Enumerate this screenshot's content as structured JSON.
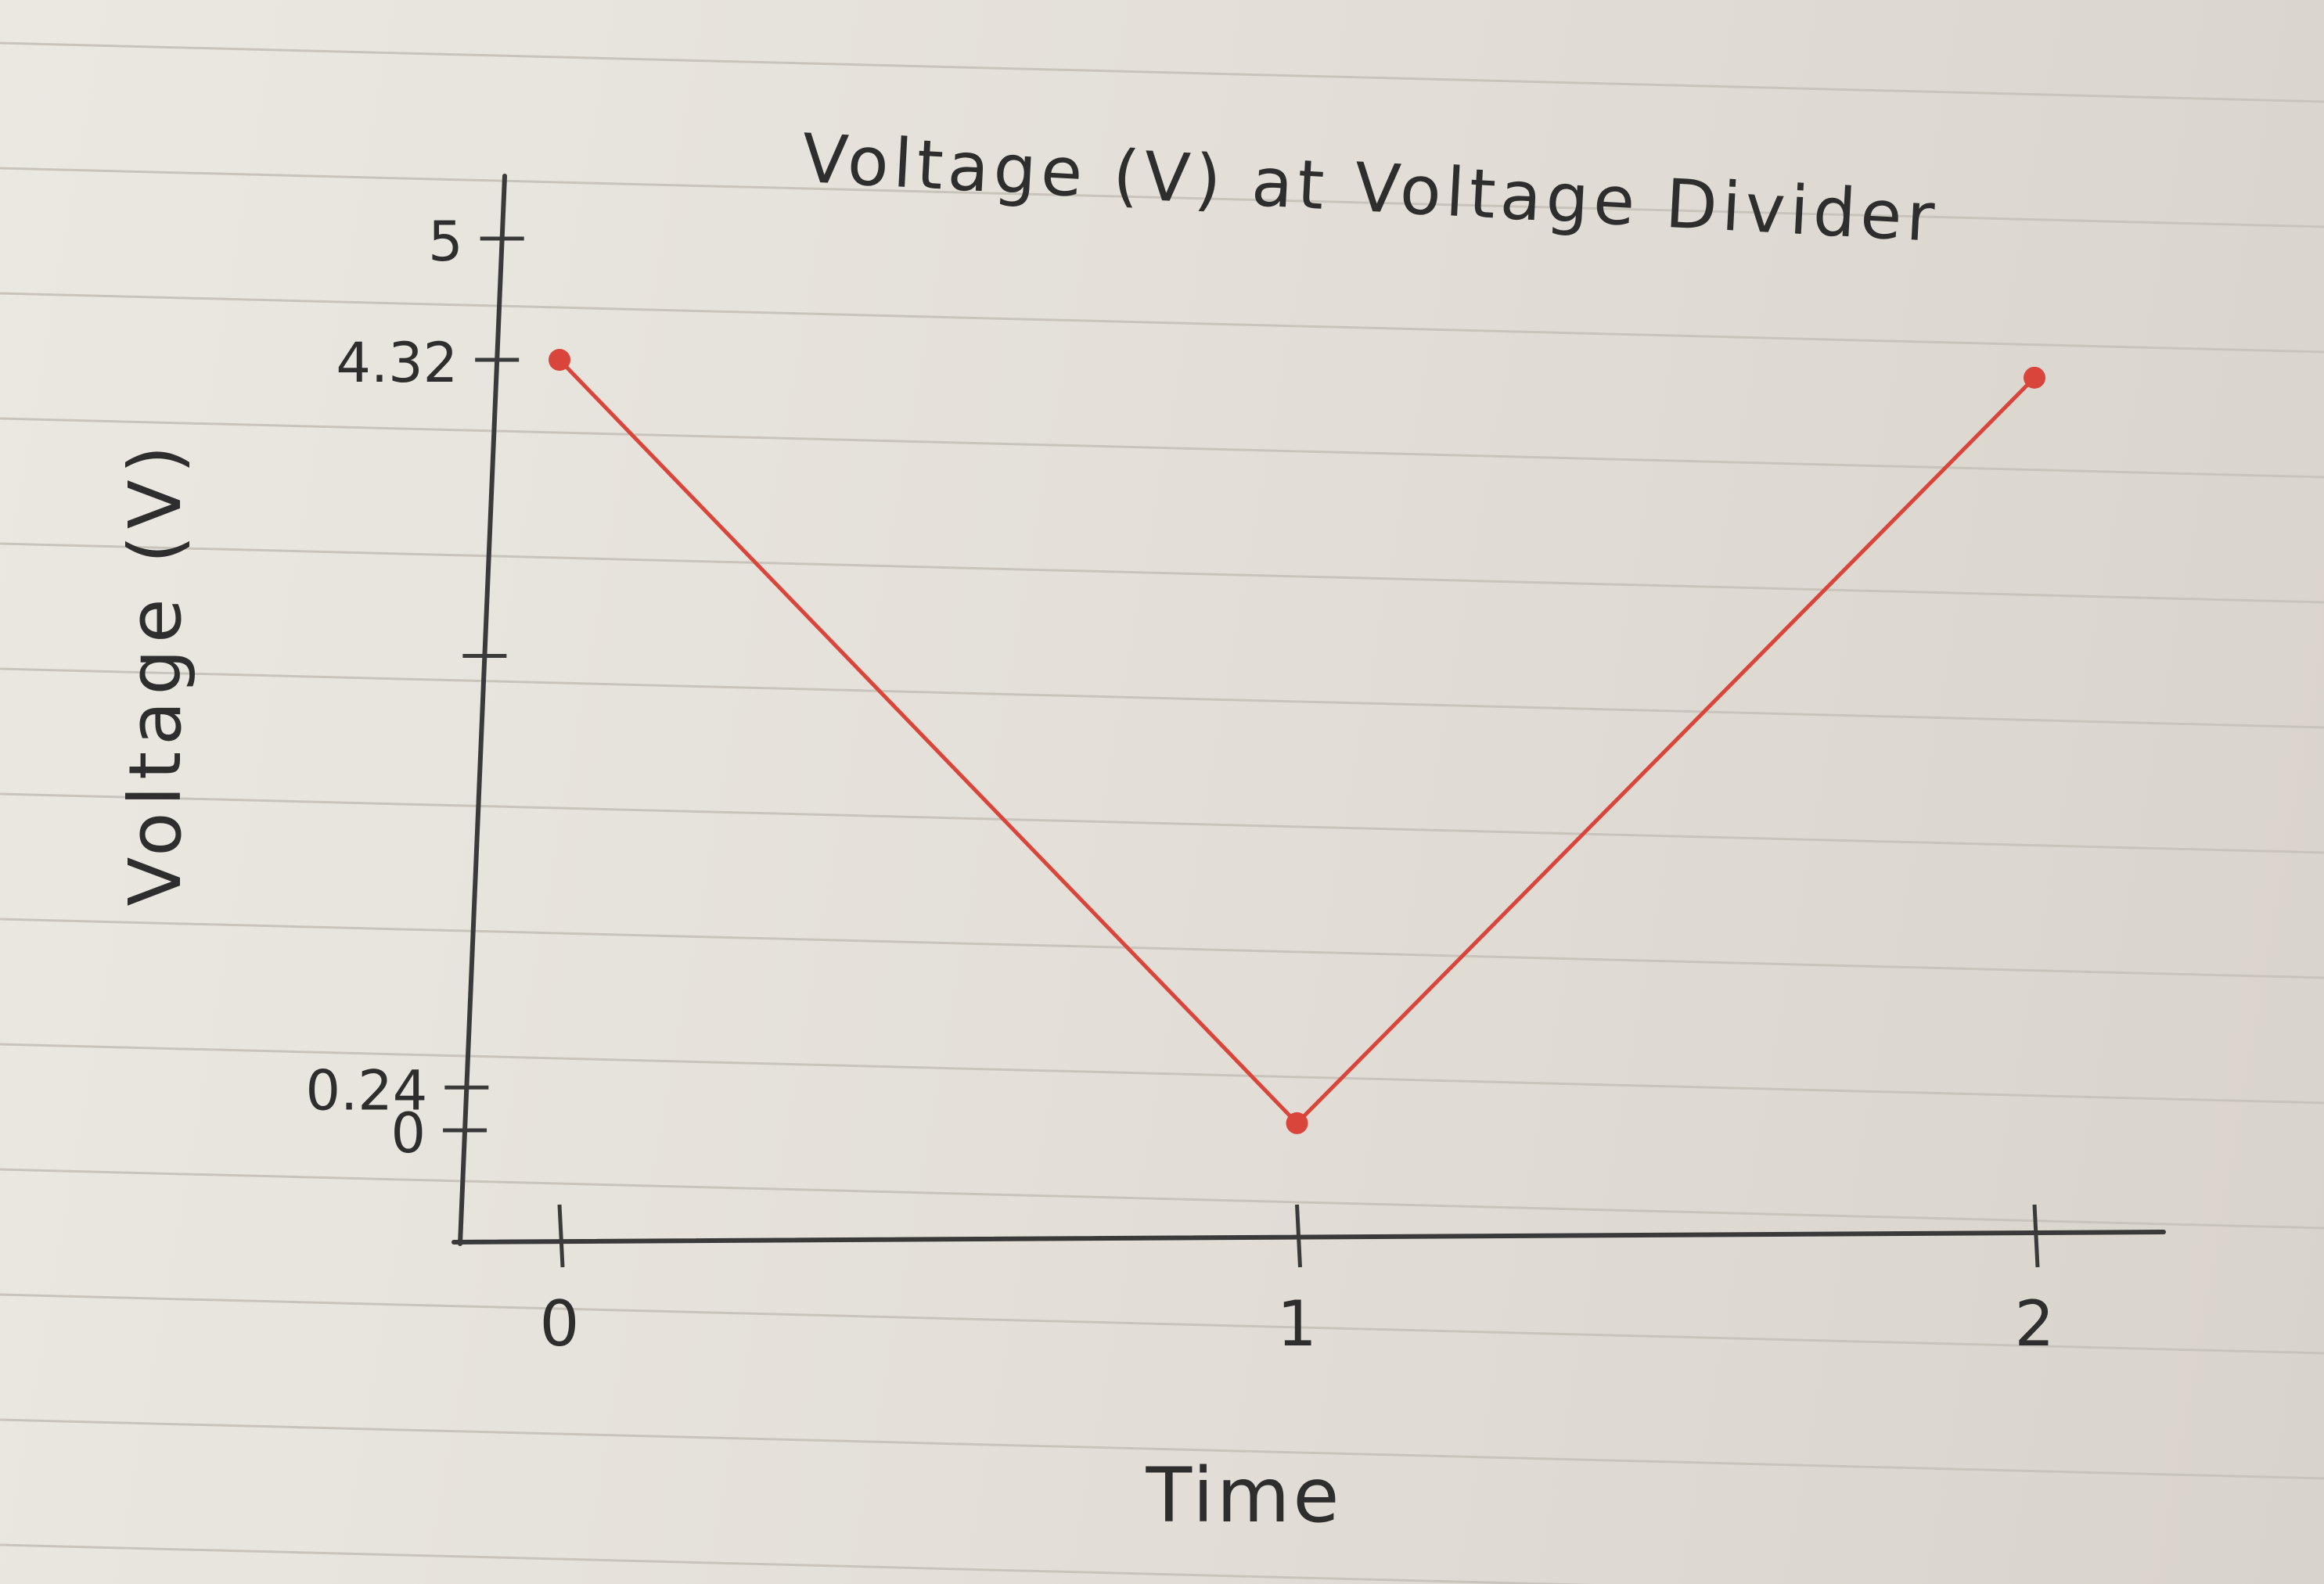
{
  "chart_data": {
    "type": "line",
    "title": "Voltage (V) at Voltage Divider",
    "xlabel": "Time",
    "ylabel": "Voltage (V)",
    "x_ticks": [
      "0",
      "1",
      "2"
    ],
    "y_ticks": [
      {
        "value": 0,
        "label": "0"
      },
      {
        "value": 0.24,
        "label": "0.24"
      },
      {
        "value": 2.66,
        "label": ""
      },
      {
        "value": 4.32,
        "label": "4.32"
      },
      {
        "value": 5,
        "label": "5"
      }
    ],
    "xlim": [
      0,
      2
    ],
    "ylim": [
      0,
      5
    ],
    "grid": false,
    "series": [
      {
        "x": [
          0,
          1,
          2
        ],
        "y": [
          4.32,
          0.04,
          4.22
        ],
        "color": "#d9453a"
      }
    ],
    "line_color": "#d9453a",
    "axis_color": "#3a3a3a"
  }
}
